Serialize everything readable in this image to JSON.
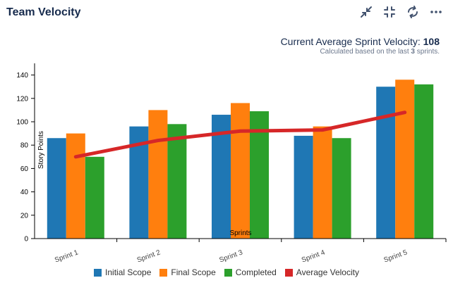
{
  "header": {
    "title": "Team Velocity",
    "icons": [
      "minimize-arrows-icon",
      "collapse-icon",
      "refresh-icon",
      "more-icon"
    ]
  },
  "summary": {
    "label": "Current Average Sprint Velocity: ",
    "value": "108",
    "note_prefix": "Calculated based on the last ",
    "note_count": "3",
    "note_suffix": " sprints."
  },
  "chart_data": {
    "type": "bar",
    "title": "",
    "xlabel": "Sprints",
    "ylabel": "Story Points",
    "ylim": [
      0,
      150
    ],
    "yticks": [
      0,
      20,
      40,
      60,
      80,
      100,
      120,
      140
    ],
    "categories": [
      "Sprint 1",
      "Sprint 2",
      "Sprint 3",
      "Sprint 4",
      "Sprint 5"
    ],
    "series": [
      {
        "name": "Initial Scope",
        "color": "#1f77b4",
        "values": [
          86,
          96,
          106,
          88,
          130
        ]
      },
      {
        "name": "Final Scope",
        "color": "#ff7f0e",
        "values": [
          90,
          110,
          116,
          96,
          136
        ]
      },
      {
        "name": "Completed",
        "color": "#2ca02c",
        "values": [
          70,
          98,
          109,
          86,
          132
        ]
      }
    ],
    "line": {
      "name": "Average Velocity",
      "color": "#d62728",
      "values": [
        70,
        84,
        92,
        93,
        108
      ]
    },
    "legend_position": "bottom"
  }
}
